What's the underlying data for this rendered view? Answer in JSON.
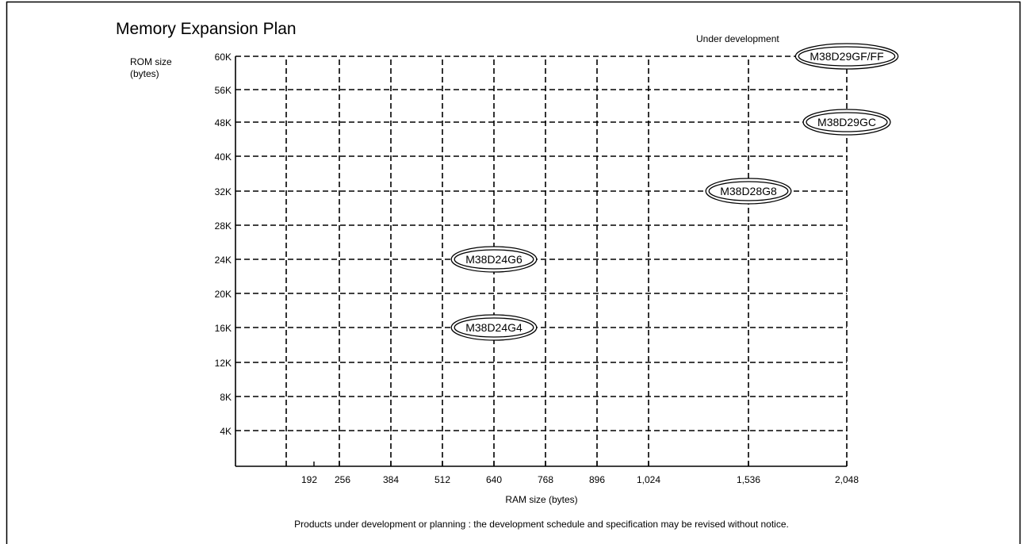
{
  "chart_data": {
    "type": "scatter",
    "title": "Memory Expansion Plan",
    "xlabel": "RAM size (bytes)",
    "ylabel_lines": [
      "ROM size",
      "(bytes)"
    ],
    "x_ticks": [
      "192",
      "256",
      "384",
      "512",
      "640",
      "768",
      "896",
      "1,024",
      "1,536",
      "2,048"
    ],
    "y_ticks": [
      "4K",
      "8K",
      "12K",
      "16K",
      "20K",
      "24K",
      "28K",
      "32K",
      "40K",
      "48K",
      "56K",
      "60K"
    ],
    "grid": true,
    "grid_style": "dashed",
    "points": [
      {
        "label": "M38D24G4",
        "x": "640",
        "y": "16K"
      },
      {
        "label": "M38D24G6",
        "x": "640",
        "y": "24K"
      },
      {
        "label": "M38D28G8",
        "x": "1,536",
        "y": "32K"
      },
      {
        "label": "M38D29GC",
        "x": "2,048",
        "y": "48K"
      },
      {
        "label": "M38D29GF/FF",
        "x": "2,048",
        "y": "60K"
      }
    ],
    "annotation": "Under development",
    "footnote": "Products under development or planning : the development schedule and specification may be revised without notice."
  }
}
